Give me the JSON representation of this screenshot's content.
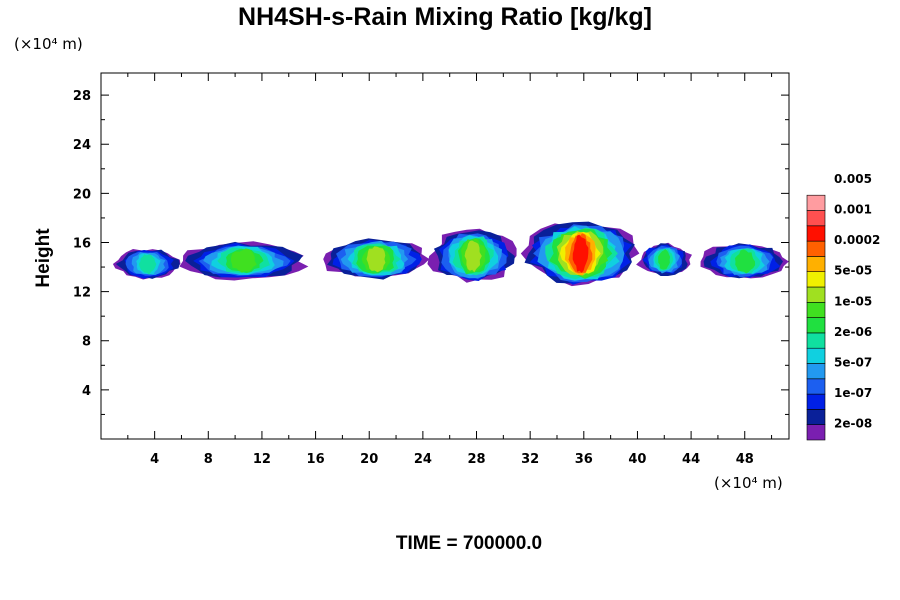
{
  "chart_data": {
    "type": "heatmap",
    "title": "NH4SH-s-Rain Mixing Ratio [kg/kg]",
    "ylabel": "Height",
    "y_unit": "(×10⁴ m)",
    "x_unit": "(×10⁴ m)",
    "xlim": [
      0,
      51.3
    ],
    "ylim": [
      0,
      29.8
    ],
    "xticks": [
      4,
      8,
      12,
      16,
      20,
      24,
      28,
      32,
      36,
      40,
      44,
      48
    ],
    "yticks": [
      4,
      8,
      12,
      16,
      20,
      24,
      28
    ],
    "colorbar": {
      "colors": [
        "#7a1fb0",
        "#0a2099",
        "#0020e6",
        "#1c5ff0",
        "#2299f0",
        "#10d0e0",
        "#10e0a0",
        "#20e040",
        "#40e020",
        "#a0e020",
        "#f0f000",
        "#ffb000",
        "#ff6000",
        "#ff1000",
        "#ff5050",
        "#ff9ca0"
      ],
      "labels": [
        "2e-08",
        "1e-07",
        "5e-07",
        "2e-06",
        "1e-05",
        "5e-05",
        "0.0002",
        "0.001",
        "0.005"
      ]
    },
    "clouds": [
      {
        "x": [
          1,
          6
        ],
        "y_base": 13,
        "y_top": 15.5,
        "peak_level": 6
      },
      {
        "x": [
          6,
          15.3
        ],
        "y_base": 13,
        "y_top": 16,
        "peak_level": 8
      },
      {
        "x": [
          16.5,
          24.5
        ],
        "y_base": 13,
        "y_top": 16.3,
        "peak_level": 9
      },
      {
        "x": [
          24.5,
          31
        ],
        "y_base": 12.8,
        "y_top": 17,
        "peak_level": 9
      },
      {
        "x": [
          31.5,
          40
        ],
        "y_base": 12.6,
        "y_top": 17.6,
        "peak_level": 13
      },
      {
        "x": [
          40,
          44
        ],
        "y_base": 13.3,
        "y_top": 15.9,
        "peak_level": 7
      },
      {
        "x": [
          44.7,
          51.3
        ],
        "y_base": 13,
        "y_top": 15.9,
        "peak_level": 7
      }
    ]
  },
  "footer": {
    "time_label": "TIME = 700000.0"
  }
}
